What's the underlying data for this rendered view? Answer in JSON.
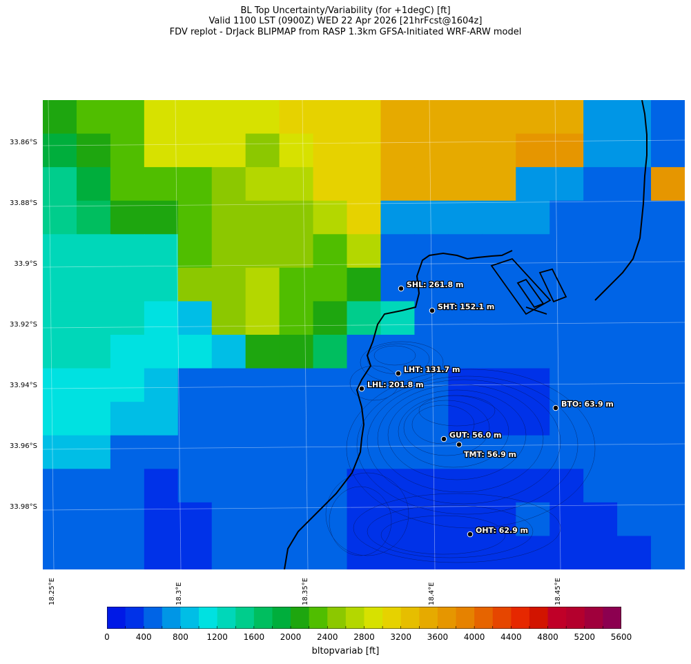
{
  "header": {
    "title_line1": "BL Top Uncertainty/Variability (for +1degC) [ft]",
    "title_line2": "Valid 1100 LST (0900Z) WED 22 Apr 2026 [21hrFcst@1604z]",
    "title_line3": "FDV replot - DrJack BLIPMAP from RASP 1.3km GFSA-Initiated WRF-ARW model"
  },
  "map": {
    "lat_ticks": [
      "33.86°S",
      "33.88°S",
      "33.9°S",
      "33.92°S",
      "33.94°S",
      "33.96°S",
      "33.98°S"
    ],
    "lon_ticks": [
      "18.25°E",
      "18.3°E",
      "18.35°E",
      "18.4°E",
      "18.45°E"
    ],
    "stations": [
      {
        "label": "SHL: 261.8 m"
      },
      {
        "label": "SHT: 152.1 m"
      },
      {
        "label": "LHT: 131.7 m"
      },
      {
        "label": "LHL: 201.8 m"
      },
      {
        "label": "BTO: 63.9 m"
      },
      {
        "label": "GUT: 56.0 m"
      },
      {
        "label": "TMT: 56.9 m"
      },
      {
        "label": "OHT: 62.9 m"
      }
    ],
    "grid_values": [
      [
        2100,
        2300,
        2300,
        2800,
        2800,
        2800,
        2800,
        3000,
        3000,
        3100,
        3500,
        3500,
        3500,
        3500,
        3500,
        3500,
        700,
        700,
        400
      ],
      [
        1800,
        2100,
        2300,
        2800,
        2800,
        2800,
        2500,
        2800,
        3000,
        3100,
        3500,
        3500,
        3500,
        3500,
        3700,
        3700,
        700,
        700,
        400
      ],
      [
        1400,
        1900,
        2300,
        2300,
        2300,
        2500,
        2700,
        2700,
        3000,
        3100,
        3500,
        3500,
        3500,
        3500,
        700,
        700,
        400,
        400,
        3700
      ],
      [
        1500,
        1700,
        2100,
        2100,
        2300,
        2500,
        2500,
        2500,
        2700,
        3100,
        700,
        700,
        700,
        700,
        700,
        400,
        400,
        400,
        400
      ],
      [
        1200,
        1200,
        1200,
        1200,
        2300,
        2500,
        2500,
        2500,
        2300,
        2700,
        400,
        400,
        400,
        400,
        400,
        400,
        400,
        400,
        400
      ],
      [
        1200,
        1200,
        1200,
        1200,
        2500,
        2500,
        2700,
        2300,
        2300,
        2000,
        400,
        400,
        400,
        400,
        400,
        400,
        400,
        400,
        400
      ],
      [
        1200,
        1200,
        1200,
        1100,
        800,
        2500,
        2700,
        2300,
        2100,
        1500,
        1300,
        400,
        400,
        400,
        400,
        400,
        400,
        400,
        400
      ],
      [
        1200,
        1200,
        1100,
        1100,
        1100,
        900,
        2100,
        2100,
        1700,
        400,
        400,
        400,
        400,
        400,
        400,
        400,
        400,
        400,
        400
      ],
      [
        1100,
        1100,
        1100,
        900,
        500,
        500,
        500,
        500,
        500,
        500,
        400,
        400,
        200,
        200,
        200,
        400,
        400,
        400,
        400
      ],
      [
        1000,
        1100,
        900,
        900,
        500,
        500,
        400,
        400,
        400,
        400,
        400,
        400,
        200,
        200,
        200,
        400,
        400,
        400,
        400
      ],
      [
        900,
        800,
        500,
        500,
        500,
        500,
        400,
        400,
        400,
        400,
        400,
        400,
        400,
        400,
        400,
        400,
        400,
        400,
        400
      ],
      [
        500,
        500,
        500,
        300,
        400,
        400,
        400,
        400,
        400,
        300,
        200,
        200,
        200,
        200,
        200,
        200,
        400,
        400,
        400
      ],
      [
        500,
        500,
        500,
        300,
        300,
        400,
        500,
        400,
        400,
        200,
        200,
        200,
        200,
        200,
        400,
        300,
        300,
        400,
        400
      ],
      [
        400,
        400,
        500,
        300,
        300,
        400,
        400,
        400,
        400,
        200,
        200,
        200,
        200,
        200,
        200,
        200,
        200,
        300,
        400
      ]
    ]
  },
  "colorbar": {
    "ticks": [
      "0",
      "400",
      "800",
      "1200",
      "1600",
      "2000",
      "2400",
      "2800",
      "3200",
      "3600",
      "4000",
      "4400",
      "4800",
      "5200",
      "5600"
    ],
    "label": "bltopvariab [ft]",
    "colors": [
      "#0019e6",
      "#0032e8",
      "#0064e6",
      "#0096e6",
      "#00bee6",
      "#00e1e1",
      "#00d7b9",
      "#00cd8c",
      "#00be5f",
      "#00ae3c",
      "#1ea60f",
      "#50be00",
      "#8cc800",
      "#b4d700",
      "#d7e100",
      "#e6d200",
      "#e6be00",
      "#e6aa00",
      "#e69600",
      "#e68200",
      "#e66400",
      "#e64600",
      "#e62800",
      "#d21400",
      "#c00028",
      "#b4002d",
      "#a0003c",
      "#8c0050"
    ]
  }
}
